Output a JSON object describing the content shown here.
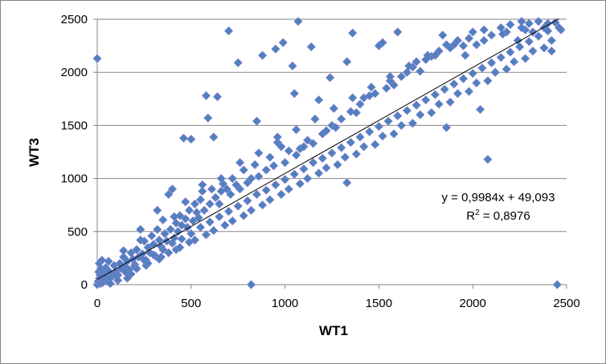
{
  "chart_data": {
    "type": "scatter",
    "title": "",
    "xlabel": "WT1",
    "ylabel": "WT3",
    "xlim": [
      0,
      2500
    ],
    "ylim": [
      0,
      2500
    ],
    "x_ticks": [
      "0",
      "500",
      "1000",
      "1500",
      "2000",
      "2500"
    ],
    "y_ticks": [
      "0",
      "500",
      "1000",
      "1500",
      "2000",
      "2500"
    ],
    "grid": "horizontal major gridlines",
    "legend": "none",
    "marker": "diamond",
    "marker_color": "#4F81BD",
    "marker_outline_color": "#7F7FD0",
    "trendline": {
      "type": "linear",
      "slope": 0.9984,
      "intercept": 49.093,
      "color": "#000000",
      "equation_label": "y = 0,9984x + 49,093",
      "r2_prefix": "R",
      "r2_sup": "2",
      "r2_value": " = 0,8976"
    },
    "series": [
      {
        "points": [
          [
            0,
            2130
          ],
          [
            0,
            0
          ],
          [
            5,
            30
          ],
          [
            8,
            120
          ],
          [
            10,
            200
          ],
          [
            12,
            60
          ],
          [
            15,
            90
          ],
          [
            18,
            10
          ],
          [
            20,
            150
          ],
          [
            22,
            40
          ],
          [
            25,
            230
          ],
          [
            28,
            70
          ],
          [
            30,
            20
          ],
          [
            35,
            110
          ],
          [
            40,
            50
          ],
          [
            45,
            160
          ],
          [
            50,
            80
          ],
          [
            55,
            30
          ],
          [
            60,
            130
          ],
          [
            70,
            60
          ],
          [
            80,
            100
          ],
          [
            90,
            180
          ],
          [
            100,
            120
          ],
          [
            110,
            90
          ],
          [
            120,
            200
          ],
          [
            130,
            150
          ],
          [
            140,
            260
          ],
          [
            150,
            170
          ],
          [
            160,
            220
          ],
          [
            170,
            140
          ],
          [
            180,
            300
          ],
          [
            190,
            240
          ],
          [
            200,
            190
          ],
          [
            210,
            330
          ],
          [
            220,
            260
          ],
          [
            230,
            520
          ],
          [
            240,
            290
          ],
          [
            250,
            410
          ],
          [
            260,
            230
          ],
          [
            270,
            350
          ],
          [
            280,
            300
          ],
          [
            290,
            460
          ],
          [
            300,
            380
          ],
          [
            310,
            270
          ],
          [
            320,
            700
          ],
          [
            330,
            420
          ],
          [
            340,
            360
          ],
          [
            350,
            610
          ],
          [
            360,
            480
          ],
          [
            370,
            410
          ],
          [
            380,
            850
          ],
          [
            390,
            520
          ],
          [
            400,
            900
          ],
          [
            410,
            440
          ],
          [
            420,
            580
          ],
          [
            430,
            500
          ],
          [
            440,
            650
          ],
          [
            450,
            560
          ],
          [
            460,
            1380
          ],
          [
            470,
            620
          ],
          [
            480,
            540
          ],
          [
            490,
            700
          ],
          [
            500,
            1370
          ],
          [
            510,
            600
          ],
          [
            520,
            760
          ],
          [
            530,
            680
          ],
          [
            540,
            630
          ],
          [
            550,
            800
          ],
          [
            560,
            940
          ],
          [
            570,
            700
          ],
          [
            580,
            1780
          ],
          [
            590,
            1570
          ],
          [
            600,
            760
          ],
          [
            610,
            900
          ],
          [
            620,
            1390
          ],
          [
            630,
            820
          ],
          [
            640,
            1770
          ],
          [
            650,
            760
          ],
          [
            660,
            880
          ],
          [
            670,
            950
          ],
          [
            690,
            900
          ],
          [
            700,
            2390
          ],
          [
            710,
            850
          ],
          [
            720,
            1000
          ],
          [
            740,
            940
          ],
          [
            750,
            2090
          ],
          [
            760,
            900
          ],
          [
            780,
            1080
          ],
          [
            800,
            960
          ],
          [
            820,
            1000
          ],
          [
            820,
            0
          ],
          [
            840,
            1130
          ],
          [
            850,
            1540
          ],
          [
            860,
            1020
          ],
          [
            880,
            2160
          ],
          [
            900,
            1080
          ],
          [
            920,
            1200
          ],
          [
            940,
            1120
          ],
          [
            950,
            2220
          ],
          [
            960,
            1390
          ],
          [
            980,
            1300
          ],
          [
            990,
            2280
          ],
          [
            1000,
            1150
          ],
          [
            1020,
            1260
          ],
          [
            1040,
            2060
          ],
          [
            1050,
            1800
          ],
          [
            1060,
            1220
          ],
          [
            1070,
            2480
          ],
          [
            1080,
            1280
          ],
          [
            1100,
            1300
          ],
          [
            1120,
            1360
          ],
          [
            1140,
            2240
          ],
          [
            1150,
            1330
          ],
          [
            1180,
            1740
          ],
          [
            1200,
            1420
          ],
          [
            1220,
            1450
          ],
          [
            1240,
            1950
          ],
          [
            1250,
            1500
          ],
          [
            1270,
            1480
          ],
          [
            1300,
            1560
          ],
          [
            1330,
            960
          ],
          [
            1330,
            2100
          ],
          [
            1350,
            1630
          ],
          [
            1360,
            2370
          ],
          [
            1380,
            1620
          ],
          [
            1400,
            1700
          ],
          [
            1420,
            1760
          ],
          [
            1450,
            1780
          ],
          [
            1480,
            1800
          ],
          [
            1500,
            2250
          ],
          [
            1520,
            2280
          ],
          [
            1540,
            1850
          ],
          [
            1560,
            1920
          ],
          [
            1580,
            1880
          ],
          [
            1600,
            2380
          ],
          [
            1620,
            1960
          ],
          [
            1650,
            2000
          ],
          [
            1680,
            2050
          ],
          [
            1700,
            2100
          ],
          [
            1720,
            2010
          ],
          [
            1750,
            2120
          ],
          [
            1780,
            2150
          ],
          [
            1800,
            2160
          ],
          [
            1820,
            2200
          ],
          [
            1840,
            2350
          ],
          [
            1860,
            1480
          ],
          [
            1880,
            2230
          ],
          [
            1900,
            2260
          ],
          [
            1920,
            2300
          ],
          [
            1950,
            2250
          ],
          [
            1980,
            2320
          ],
          [
            2000,
            2380
          ],
          [
            2020,
            2260
          ],
          [
            2040,
            1650
          ],
          [
            2060,
            2400
          ],
          [
            2080,
            1180
          ],
          [
            2100,
            2350
          ],
          [
            2120,
            2000
          ],
          [
            2150,
            2420
          ],
          [
            2180,
            2380
          ],
          [
            2200,
            2450
          ],
          [
            2240,
            2300
          ],
          [
            2260,
            2480
          ],
          [
            2280,
            2400
          ],
          [
            2300,
            2460
          ],
          [
            2320,
            2380
          ],
          [
            2350,
            2480
          ],
          [
            2380,
            2420
          ],
          [
            2400,
            2460
          ],
          [
            2420,
            2200
          ],
          [
            2440,
            2470
          ],
          [
            2450,
            0
          ],
          [
            2460,
            2420
          ],
          [
            2470,
            2400
          ],
          [
            100,
            80
          ],
          [
            150,
            120
          ],
          [
            200,
            170
          ],
          [
            250,
            230
          ],
          [
            300,
            280
          ],
          [
            350,
            330
          ],
          [
            400,
            390
          ],
          [
            450,
            430
          ],
          [
            500,
            480
          ],
          [
            550,
            540
          ],
          [
            600,
            590
          ],
          [
            650,
            640
          ],
          [
            700,
            690
          ],
          [
            750,
            740
          ],
          [
            800,
            790
          ],
          [
            850,
            850
          ],
          [
            900,
            890
          ],
          [
            950,
            940
          ],
          [
            1000,
            990
          ],
          [
            1050,
            1040
          ],
          [
            1100,
            1090
          ],
          [
            1150,
            1150
          ],
          [
            1200,
            1190
          ],
          [
            1250,
            1240
          ],
          [
            1300,
            1290
          ],
          [
            1350,
            1340
          ],
          [
            1400,
            1390
          ],
          [
            1450,
            1440
          ],
          [
            1500,
            1490
          ],
          [
            1550,
            1540
          ],
          [
            1600,
            1590
          ],
          [
            1650,
            1640
          ],
          [
            1700,
            1690
          ],
          [
            1750,
            1740
          ],
          [
            1800,
            1790
          ],
          [
            1850,
            1840
          ],
          [
            1900,
            1890
          ],
          [
            1950,
            1940
          ],
          [
            2000,
            1990
          ],
          [
            2050,
            2040
          ],
          [
            2100,
            2090
          ],
          [
            2150,
            2140
          ],
          [
            2200,
            2190
          ],
          [
            2250,
            2240
          ],
          [
            2300,
            2290
          ],
          [
            2350,
            2340
          ],
          [
            2400,
            2390
          ],
          [
            180,
            100
          ],
          [
            260,
            180
          ],
          [
            340,
            260
          ],
          [
            420,
            330
          ],
          [
            520,
            420
          ],
          [
            620,
            510
          ],
          [
            720,
            600
          ],
          [
            820,
            700
          ],
          [
            920,
            800
          ],
          [
            1020,
            900
          ],
          [
            1120,
            1000
          ],
          [
            1220,
            1100
          ],
          [
            1320,
            1200
          ],
          [
            1420,
            1300
          ],
          [
            1520,
            1400
          ],
          [
            1620,
            1500
          ],
          [
            1720,
            1600
          ],
          [
            1820,
            1700
          ],
          [
            1920,
            1800
          ],
          [
            2020,
            1900
          ],
          [
            2120,
            2000
          ],
          [
            2220,
            2100
          ],
          [
            2320,
            2200
          ],
          [
            2420,
            2300
          ],
          [
            60,
            220
          ],
          [
            140,
            320
          ],
          [
            230,
            420
          ],
          [
            320,
            520
          ],
          [
            410,
            640
          ],
          [
            470,
            780
          ],
          [
            560,
            880
          ],
          [
            660,
            1000
          ],
          [
            760,
            1150
          ],
          [
            860,
            1240
          ],
          [
            960,
            1340
          ],
          [
            1060,
            1460
          ],
          [
            1160,
            1560
          ],
          [
            1260,
            1660
          ],
          [
            1360,
            1760
          ],
          [
            1460,
            1860
          ],
          [
            1560,
            1960
          ],
          [
            1660,
            2060
          ],
          [
            1760,
            2160
          ],
          [
            1860,
            2260
          ],
          [
            1960,
            2160
          ],
          [
            2060,
            2300
          ],
          [
            2160,
            2360
          ],
          [
            2260,
            2420
          ],
          [
            70,
            10
          ],
          [
            110,
            40
          ],
          [
            160,
            60
          ],
          [
            210,
            150
          ],
          [
            270,
            200
          ],
          [
            330,
            240
          ],
          [
            380,
            300
          ],
          [
            440,
            350
          ],
          [
            490,
            400
          ],
          [
            580,
            470
          ],
          [
            680,
            560
          ],
          [
            780,
            650
          ],
          [
            880,
            750
          ],
          [
            980,
            850
          ],
          [
            1080,
            950
          ],
          [
            1180,
            1050
          ],
          [
            1280,
            1130
          ],
          [
            1380,
            1230
          ],
          [
            1480,
            1320
          ],
          [
            1580,
            1420
          ],
          [
            1680,
            1520
          ],
          [
            1780,
            1620
          ],
          [
            1880,
            1720
          ],
          [
            1980,
            1820
          ],
          [
            2080,
            1920
          ],
          [
            2180,
            2030
          ],
          [
            2280,
            2130
          ],
          [
            2380,
            2230
          ]
        ]
      }
    ]
  }
}
